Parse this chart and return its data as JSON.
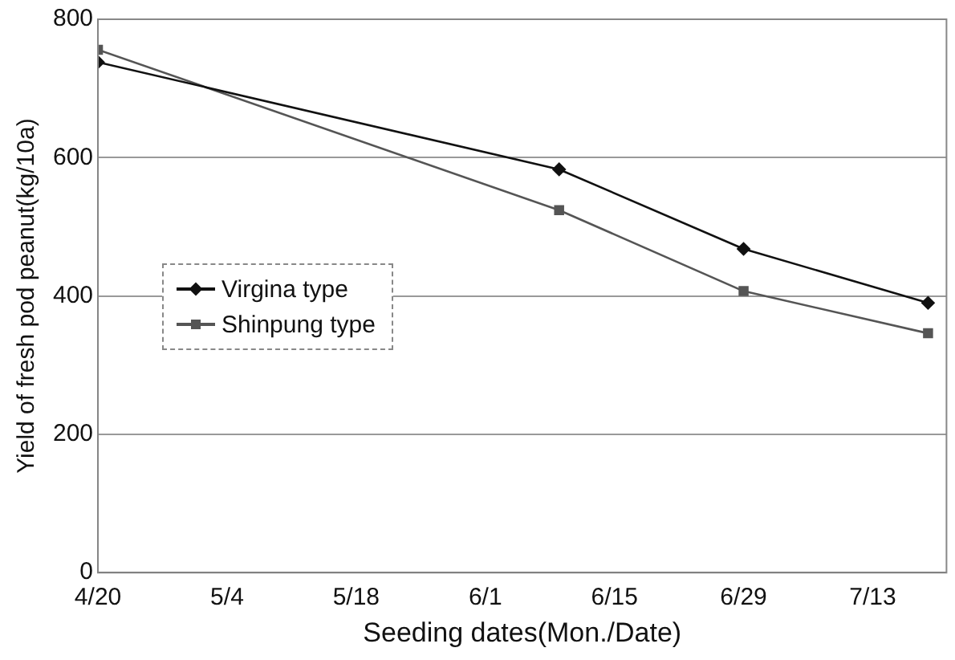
{
  "chart_data": {
    "type": "line",
    "xlabel": "Seeding dates(Mon./Date)",
    "ylabel": "Yield of fresh pod peanut(kg/10a)",
    "x": [
      "--04-20",
      "--06-09",
      "--06-29",
      "--07-19"
    ],
    "series": [
      {
        "name": "Virgina type",
        "color": "#111111",
        "marker": "diamond",
        "values": [
          738,
          583,
          468,
          390
        ]
      },
      {
        "name": "Shinpung type",
        "color": "#555555",
        "marker": "square",
        "values": [
          756,
          524,
          407,
          346
        ]
      }
    ],
    "xlim": [
      "--04-20",
      "--07-21"
    ],
    "xticks": [
      {
        "value": "--04-20",
        "label": "4/20"
      },
      {
        "value": "--05-04",
        "label": "5/4"
      },
      {
        "value": "--05-18",
        "label": "5/18"
      },
      {
        "value": "--06-01",
        "label": "6/1"
      },
      {
        "value": "--06-15",
        "label": "6/15"
      },
      {
        "value": "--06-29",
        "label": "6/29"
      },
      {
        "value": "--07-13",
        "label": "7/13"
      }
    ],
    "ylim": [
      0,
      800
    ],
    "yticks": [
      0,
      200,
      400,
      600,
      800
    ],
    "grid": "y",
    "legend": "center left",
    "line_style": "solid"
  }
}
